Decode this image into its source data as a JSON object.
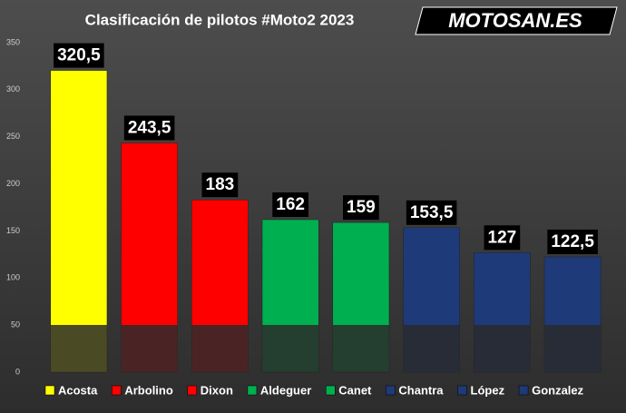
{
  "chart_data": {
    "type": "bar",
    "title": "Clasificación de pilotos #Moto2 2023",
    "logo_text": "MOTOSAN.ES",
    "categories": [
      "Acosta",
      "Arbolino",
      "Dixon",
      "Aldeguer",
      "Canet",
      "Chantra",
      "López",
      "Gonzalez"
    ],
    "values": [
      320.5,
      243.5,
      183,
      162,
      159,
      153.5,
      127,
      122.5
    ],
    "value_labels": [
      "320,5",
      "243,5",
      "183",
      "162",
      "159",
      "153,5",
      "127",
      "122,5"
    ],
    "colors": [
      "#ffff00",
      "#ff0000",
      "#ff0000",
      "#00b050",
      "#00b050",
      "#1f3a78",
      "#1f3a78",
      "#1f3a78"
    ],
    "ylim": [
      0,
      350
    ],
    "yticks": [
      0,
      50,
      100,
      150,
      200,
      250,
      300,
      350
    ],
    "grid": false
  }
}
